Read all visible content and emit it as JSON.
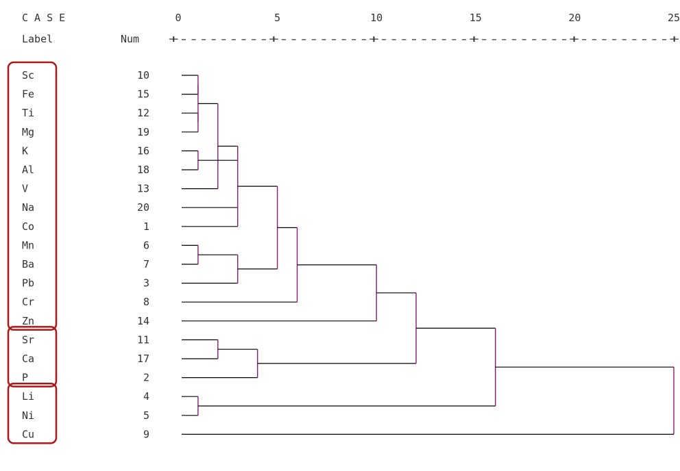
{
  "header": {
    "case_label": "C A S E",
    "label_col": "Label",
    "num_col": "Num",
    "ruler": "+---------+---------+---------+---------+---------+"
  },
  "chart_data": {
    "type": "dendrogram",
    "title": "",
    "xlabel": "",
    "ylabel": "",
    "xlim": [
      0,
      25
    ],
    "x_ticks": [
      "0",
      "5",
      "10",
      "15",
      "20",
      "25"
    ],
    "cases": [
      {
        "label": "Sc",
        "num": "10"
      },
      {
        "label": "Fe",
        "num": "15"
      },
      {
        "label": "Ti",
        "num": "12"
      },
      {
        "label": "Mg",
        "num": "19"
      },
      {
        "label": "K",
        "num": "16"
      },
      {
        "label": "Al",
        "num": "18"
      },
      {
        "label": "V",
        "num": "13"
      },
      {
        "label": "Na",
        "num": "20"
      },
      {
        "label": "Co",
        "num": "1"
      },
      {
        "label": "Mn",
        "num": "6"
      },
      {
        "label": "Ba",
        "num": "7"
      },
      {
        "label": "Pb",
        "num": "3"
      },
      {
        "label": "Cr",
        "num": "8"
      },
      {
        "label": "Zn",
        "num": "14"
      },
      {
        "label": "Sr",
        "num": "11"
      },
      {
        "label": "Ca",
        "num": "17"
      },
      {
        "label": "P",
        "num": "2"
      },
      {
        "label": "Li",
        "num": "4"
      },
      {
        "label": "Ni",
        "num": "5"
      },
      {
        "label": "Cu",
        "num": "9"
      }
    ],
    "groups": [
      {
        "start": 0,
        "end": 13
      },
      {
        "start": 14,
        "end": 16
      },
      {
        "start": 17,
        "end": 19
      }
    ],
    "merges": [
      {
        "children": [
          0,
          1
        ],
        "d": 1.0
      },
      {
        "children": [
          2,
          3
        ],
        "d": 1.0
      },
      {
        "children": [
          4,
          5
        ],
        "d": 1.0
      },
      {
        "children": [
          9,
          10
        ],
        "d": 1.0
      },
      {
        "children": [
          17,
          18
        ],
        "d": 1.0
      },
      {
        "children": [
          "m0",
          "m1"
        ],
        "d": 1.0
      },
      {
        "children": [
          14,
          15
        ],
        "d": 2.0
      },
      {
        "children": [
          "m5",
          6
        ],
        "d": 2.0
      },
      {
        "children": [
          "m2",
          "m7",
          7,
          8
        ],
        "d": 3.0
      },
      {
        "children": [
          "m3",
          11
        ],
        "d": 3.0
      },
      {
        "children": [
          "m6",
          16
        ],
        "d": 4.0
      },
      {
        "children": [
          "m8",
          "m9"
        ],
        "d": 5.0
      },
      {
        "children": [
          "m11",
          12
        ],
        "d": 6.0
      },
      {
        "children": [
          "m12",
          13
        ],
        "d": 10.0
      },
      {
        "children": [
          "m13",
          "m10"
        ],
        "d": 12.0
      },
      {
        "children": [
          "m14",
          "m4"
        ],
        "d": 16.0
      },
      {
        "children": [
          "m15",
          19
        ],
        "d": 25.0
      }
    ]
  },
  "style": {
    "horizontal_color": "#000000",
    "vertical_color": "#8b1a6b",
    "group_box_color": "#b01515",
    "text_color": "#333333"
  }
}
